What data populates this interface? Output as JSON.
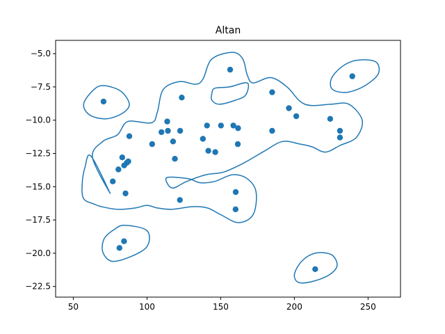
{
  "chart_data": {
    "type": "scatter",
    "title": "Altan",
    "xlabel": "",
    "ylabel": "",
    "xlim": [
      38,
      272
    ],
    "ylim": [
      -23.3,
      -4.0
    ],
    "xticks": [
      50,
      100,
      150,
      200,
      250
    ],
    "yticks": [
      -5.0,
      -7.5,
      -10.0,
      -12.5,
      -15.0,
      -17.5,
      -20.0,
      -22.5
    ],
    "xtick_labels": [
      "50",
      "100",
      "150",
      "200",
      "250"
    ],
    "ytick_labels": [
      "−5.0",
      "−7.5",
      "−10.0",
      "−12.5",
      "−15.0",
      "−17.5",
      "−20.0",
      "−22.5"
    ],
    "grid": false,
    "colors": {
      "points": "#1f77b4",
      "contours": "#1f77b4"
    },
    "points": [
      {
        "x": 70.5,
        "y": -8.6
      },
      {
        "x": 76.8,
        "y": -14.6
      },
      {
        "x": 80.6,
        "y": -13.7
      },
      {
        "x": 83.2,
        "y": -12.8
      },
      {
        "x": 84.5,
        "y": -13.4
      },
      {
        "x": 86.3,
        "y": -13.2
      },
      {
        "x": 87.3,
        "y": -13.1
      },
      {
        "x": 88.0,
        "y": -11.2
      },
      {
        "x": 85.4,
        "y": -15.5
      },
      {
        "x": 84.4,
        "y": -19.1
      },
      {
        "x": 81.3,
        "y": -19.6
      },
      {
        "x": 103.5,
        "y": -11.8
      },
      {
        "x": 109.8,
        "y": -10.9
      },
      {
        "x": 113.7,
        "y": -10.1
      },
      {
        "x": 114.2,
        "y": -10.8
      },
      {
        "x": 117.7,
        "y": -11.6
      },
      {
        "x": 118.9,
        "y": -12.9
      },
      {
        "x": 122.5,
        "y": -10.8
      },
      {
        "x": 123.6,
        "y": -8.3
      },
      {
        "x": 122.3,
        "y": -16.0
      },
      {
        "x": 137.9,
        "y": -11.4
      },
      {
        "x": 140.7,
        "y": -10.4
      },
      {
        "x": 141.6,
        "y": -12.3
      },
      {
        "x": 146.3,
        "y": -12.4
      },
      {
        "x": 150.2,
        "y": -10.4
      },
      {
        "x": 156.4,
        "y": -6.2
      },
      {
        "x": 158.6,
        "y": -10.4
      },
      {
        "x": 160.2,
        "y": -15.4
      },
      {
        "x": 160.1,
        "y": -16.7
      },
      {
        "x": 161.8,
        "y": -10.6
      },
      {
        "x": 161.6,
        "y": -11.8
      },
      {
        "x": 184.9,
        "y": -7.9
      },
      {
        "x": 184.9,
        "y": -10.8
      },
      {
        "x": 196.3,
        "y": -9.1
      },
      {
        "x": 201.3,
        "y": -9.7
      },
      {
        "x": 224.3,
        "y": -9.9
      },
      {
        "x": 230.9,
        "y": -10.8
      },
      {
        "x": 230.9,
        "y": -11.3
      },
      {
        "x": 239.3,
        "y": -6.7
      },
      {
        "x": 214.1,
        "y": -21.2
      }
    ],
    "contours": [
      [
        [
          70,
          -7.4
        ],
        [
          82,
          -7.8
        ],
        [
          88,
          -8.8
        ],
        [
          83,
          -9.5
        ],
        [
          72,
          -9.9
        ],
        [
          61,
          -9.6
        ],
        [
          57,
          -8.8
        ],
        [
          63,
          -7.8
        ]
      ],
      [
        [
          75,
          -15.5
        ],
        [
          63,
          -12.8
        ],
        [
          70,
          -11.6
        ],
        [
          80,
          -11.1
        ],
        [
          87,
          -10.1
        ],
        [
          103,
          -10.2
        ],
        [
          107,
          -9.4
        ],
        [
          111,
          -7.7
        ],
        [
          122,
          -7.1
        ],
        [
          133,
          -7.3
        ],
        [
          138,
          -6.9
        ],
        [
          144,
          -5.4
        ],
        [
          158,
          -4.9
        ],
        [
          165,
          -5.4
        ],
        [
          168,
          -6.6
        ],
        [
          172,
          -7.2
        ],
        [
          184,
          -6.8
        ],
        [
          195,
          -7.5
        ],
        [
          204,
          -8.6
        ],
        [
          212,
          -8.9
        ],
        [
          225,
          -8.8
        ],
        [
          237,
          -8.8
        ],
        [
          246,
          -10.0
        ],
        [
          242,
          -11.3
        ],
        [
          231,
          -11.9
        ],
        [
          221,
          -12.4
        ],
        [
          212,
          -12.0
        ],
        [
          204,
          -11.8
        ],
        [
          192,
          -11.6
        ],
        [
          180,
          -12.3
        ],
        [
          166,
          -13.2
        ],
        [
          152,
          -13.9
        ],
        [
          140,
          -14.1
        ],
        [
          127,
          -14.6
        ],
        [
          118,
          -15.1
        ],
        [
          114,
          -14.8
        ],
        [
          114,
          -14.3
        ],
        [
          128,
          -14.4
        ],
        [
          136,
          -14.7
        ],
        [
          146,
          -14.6
        ],
        [
          158,
          -14.1
        ],
        [
          168,
          -14.4
        ],
        [
          174,
          -15.4
        ],
        [
          172,
          -17.1
        ],
        [
          162,
          -17.7
        ],
        [
          150,
          -17.1
        ],
        [
          141,
          -16.6
        ],
        [
          131,
          -16.5
        ],
        [
          117,
          -16.7
        ],
        [
          107,
          -16.6
        ],
        [
          100,
          -16.4
        ],
        [
          92,
          -16.6
        ],
        [
          80,
          -16.7
        ],
        [
          69,
          -16.5
        ],
        [
          64,
          -16.3
        ],
        [
          57,
          -15.9
        ],
        [
          56,
          -14.8
        ],
        [
          58,
          -13.5
        ],
        [
          62,
          -12.7
        ]
      ],
      [
        [
          146,
          -7.6
        ],
        [
          156,
          -7.5
        ],
        [
          168,
          -7.2
        ],
        [
          167,
          -8.1
        ],
        [
          160,
          -8.5
        ],
        [
          149,
          -8.8
        ],
        [
          144,
          -8.5
        ],
        [
          144,
          -8.0
        ]
      ],
      [
        [
          85,
          -17.9
        ],
        [
          100,
          -18.3
        ],
        [
          100,
          -19.5
        ],
        [
          88,
          -20.3
        ],
        [
          76,
          -20.6
        ],
        [
          70,
          -19.9
        ],
        [
          71,
          -18.9
        ],
        [
          78,
          -18.2
        ]
      ],
      [
        [
          242,
          -5.5
        ],
        [
          255,
          -5.6
        ],
        [
          257,
          -6.5
        ],
        [
          248,
          -7.4
        ],
        [
          236,
          -7.9
        ],
        [
          226,
          -7.7
        ],
        [
          225,
          -6.9
        ],
        [
          232,
          -6.0
        ]
      ],
      [
        [
          214,
          -20.0
        ],
        [
          225,
          -20.1
        ],
        [
          229,
          -20.9
        ],
        [
          224,
          -21.6
        ],
        [
          213,
          -22.1
        ],
        [
          203,
          -22.2
        ],
        [
          200,
          -21.6
        ],
        [
          205,
          -20.6
        ]
      ]
    ]
  }
}
